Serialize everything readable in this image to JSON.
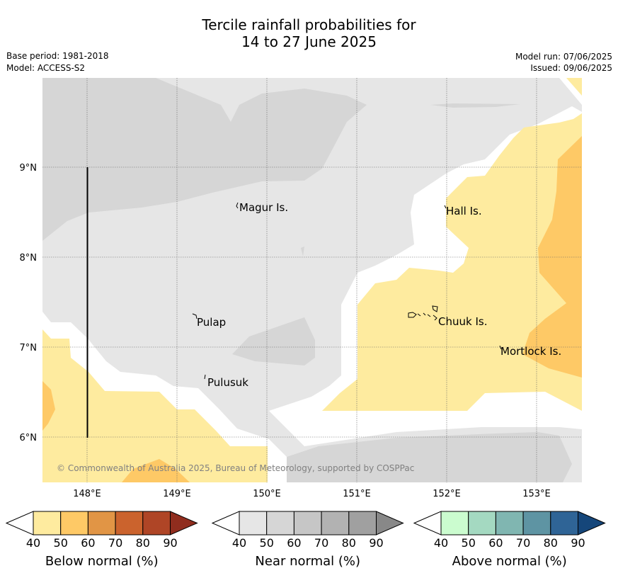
{
  "title_line1": "Tercile rainfall probabilities for",
  "title_line2": "14 to 27 June 2025",
  "base_period": "Base period: 1981-2018",
  "model": "Model: ACCESS-S2",
  "model_run": "Model run: 07/06/2025",
  "issued": "Issued: 09/06/2025",
  "copyright": "© Commonwealth of Australia 2025, Bureau of Meteorology, supported by COSPPac",
  "map": {
    "lon_range": [
      147.5,
      153.5
    ],
    "lat_range": [
      5.5,
      10.0
    ],
    "grid": true,
    "lon_ticks": [
      "148°E",
      "149°E",
      "150°E",
      "151°E",
      "152°E",
      "153°E"
    ],
    "lat_ticks": [
      "9°N",
      "8°N",
      "7°N",
      "6°N"
    ],
    "places": [
      {
        "name": "Magur Is.",
        "lon": 149.65,
        "lat": 8.55
      },
      {
        "name": "Hall Is.",
        "lon": 151.97,
        "lat": 8.5
      },
      {
        "name": "Pulap",
        "lon": 149.2,
        "lat": 7.3
      },
      {
        "name": "Chuuk Is.",
        "lon": 151.85,
        "lat": 7.3
      },
      {
        "name": "Mortlock Is.",
        "lon": 152.6,
        "lat": 6.97
      },
      {
        "name": "Pulusuk",
        "lon": 149.3,
        "lat": 6.63
      }
    ]
  },
  "colorbars": [
    {
      "label": "Below normal (%)",
      "ticks": [
        "40",
        "50",
        "60",
        "70",
        "80",
        "90"
      ],
      "colors": [
        "#ffffff",
        "#feeb9f",
        "#fec966",
        "#e19545",
        "#cb632d",
        "#af4526",
        "#902d1e"
      ]
    },
    {
      "label": "Near normal (%)",
      "ticks": [
        "40",
        "50",
        "60",
        "70",
        "80",
        "90"
      ],
      "colors": [
        "#ffffff",
        "#e6e6e6",
        "#d6d6d6",
        "#c6c6c6",
        "#b2b2b2",
        "#a0a0a0",
        "#888888"
      ]
    },
    {
      "label": "Above normal (%)",
      "ticks": [
        "40",
        "50",
        "60",
        "70",
        "80",
        "90"
      ],
      "colors": [
        "#ffffff",
        "#cbfccf",
        "#a4d9c1",
        "#80b6b1",
        "#5e94a3",
        "#2f6496",
        "#15467a"
      ]
    }
  ]
}
